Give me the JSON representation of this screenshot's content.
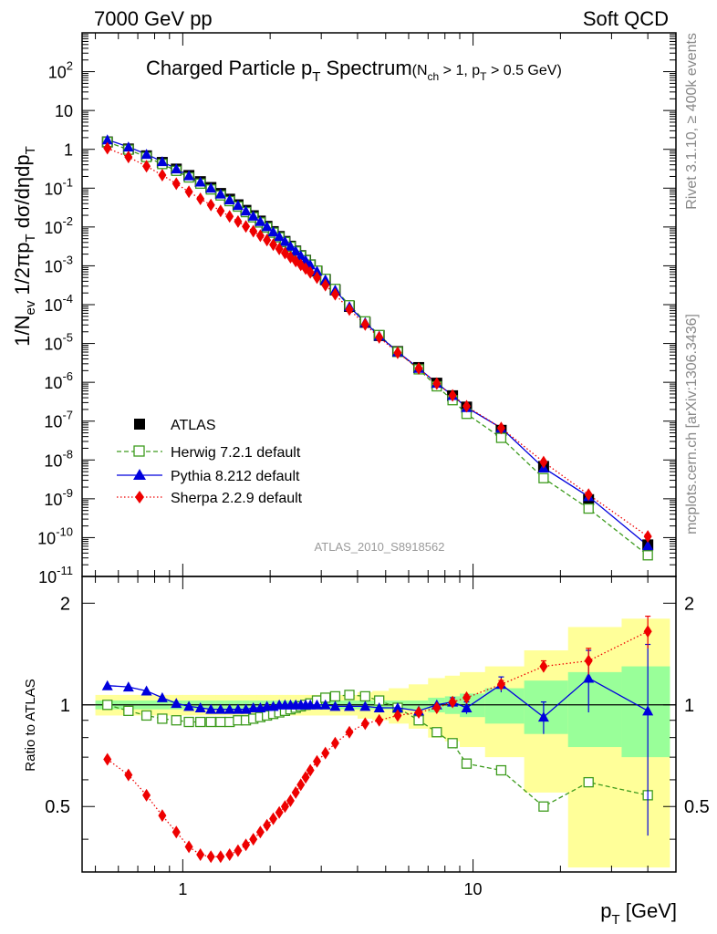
{
  "header": {
    "left": "7000 GeV pp",
    "right": "Soft QCD"
  },
  "title": {
    "main": "Charged Particle p",
    "main_sub": "T",
    "main_tail": " Spectrum",
    "cond_open": "(N",
    "cond_sub1": "ch",
    "cond_mid": " > 1, p",
    "cond_sub2": "T",
    "cond_tail": " > 0.5 GeV)"
  },
  "side_labels": {
    "rivet": "Rivet 3.1.10, ≥ 400k events",
    "mcplots": "mcplots.cern.ch [arXiv:1306.3436]"
  },
  "analysis_id": "ATLAS_2010_S8918562",
  "ylabel_main": {
    "p1": "1/N",
    "s1": "ev",
    "p2": " 1/2πp",
    "s2": "T",
    "p3": " dσ/dηdp",
    "s3": "T"
  },
  "ylabel_ratio": "Ratio to ATLAS",
  "xlabel": {
    "p": "p",
    "s": "T",
    "unit": "  [GeV]"
  },
  "colors": {
    "atlas": "#000000",
    "herwig": "#3d9b1d",
    "pythia": "#0000dd",
    "sherpa": "#ee0000",
    "band_outer": "#ffff99",
    "band_inner": "#99ff99"
  },
  "chart_data": {
    "type": "scatter",
    "x": [
      0.55,
      0.65,
      0.75,
      0.85,
      0.95,
      1.05,
      1.15,
      1.25,
      1.35,
      1.45,
      1.55,
      1.65,
      1.75,
      1.85,
      1.95,
      2.05,
      2.15,
      2.25,
      2.35,
      2.45,
      2.55,
      2.65,
      2.75,
      2.9,
      3.1,
      3.35,
      3.75,
      4.25,
      4.75,
      5.5,
      6.5,
      7.5,
      8.5,
      9.5,
      12.5,
      17.5,
      25,
      40
    ],
    "xscale": "log",
    "xlim": [
      0.45,
      50
    ],
    "ylim_main": [
      1e-11,
      1000
    ],
    "ylim_ratio": [
      0.32,
      2.4
    ],
    "y_ticks_main": [
      "10^{-11}",
      "10^{-10}",
      "10^{-9}",
      "10^{-8}",
      "10^{-7}",
      "10^{-6}",
      "10^{-5}",
      "10^{-4}",
      "10^{-3}",
      "10^{-2}",
      "10^{-1}",
      "1",
      "10",
      "10^{2}"
    ],
    "y_ticks_ratio": [
      "0.5",
      "1",
      "2"
    ],
    "x_ticks": [
      "1",
      "10"
    ],
    "series": [
      {
        "name": "ATLAS",
        "marker": "square-filled",
        "values": [
          1.55,
          1.02,
          0.68,
          0.46,
          0.31,
          0.212,
          0.147,
          0.104,
          0.073,
          0.052,
          0.0373,
          0.0268,
          0.0195,
          0.0142,
          0.0104,
          0.0076,
          0.0057,
          0.00425,
          0.0032,
          0.0024,
          0.00183,
          0.00139,
          0.00106,
          0.00073,
          0.00044,
          0.00024,
          9e-05,
          3.5e-05,
          1.6e-05,
          6.2e-06,
          2.4e-06,
          9.5e-07,
          4.5e-07,
          2.3e-07,
          5.8e-08,
          6.8e-09,
          9.5e-10,
          6.5e-11
        ],
        "ratio_band_inner": [
          0.03,
          0.03,
          0.03,
          0.03,
          0.03,
          0.03,
          0.03,
          0.03,
          0.03,
          0.03,
          0.03,
          0.03,
          0.03,
          0.03,
          0.03,
          0.03,
          0.03,
          0.03,
          0.03,
          0.03,
          0.03,
          0.03,
          0.03,
          0.03,
          0.03,
          0.03,
          0.03,
          0.03,
          0.03,
          0.03,
          0.03,
          0.05,
          0.06,
          0.08,
          0.12,
          0.18,
          0.25,
          0.3
        ],
        "ratio_band_outer": [
          0.07,
          0.07,
          0.07,
          0.07,
          0.07,
          0.07,
          0.07,
          0.07,
          0.07,
          0.07,
          0.07,
          0.07,
          0.07,
          0.07,
          0.07,
          0.07,
          0.07,
          0.07,
          0.07,
          0.07,
          0.07,
          0.07,
          0.07,
          0.07,
          0.07,
          0.07,
          0.07,
          0.09,
          0.1,
          0.12,
          0.15,
          0.2,
          0.22,
          0.25,
          0.3,
          0.45,
          0.7,
          0.8
        ]
      },
      {
        "name": "Herwig 7.2.1 default",
        "marker": "square-open",
        "line": "dashed",
        "ratio": [
          1.0,
          0.96,
          0.93,
          0.91,
          0.9,
          0.89,
          0.89,
          0.89,
          0.89,
          0.89,
          0.9,
          0.9,
          0.91,
          0.92,
          0.93,
          0.94,
          0.95,
          0.96,
          0.97,
          0.98,
          0.99,
          1.0,
          1.01,
          1.03,
          1.05,
          1.06,
          1.07,
          1.06,
          1.03,
          0.98,
          0.9,
          0.83,
          0.77,
          0.67,
          0.64,
          0.5,
          0.59,
          0.54
        ]
      },
      {
        "name": "Pythia 8.212 default",
        "marker": "triangle-filled",
        "line": "solid",
        "ratio": [
          1.14,
          1.13,
          1.1,
          1.05,
          1.01,
          0.99,
          0.98,
          0.97,
          0.97,
          0.97,
          0.97,
          0.97,
          0.98,
          0.98,
          0.99,
          0.99,
          1.0,
          1.0,
          1.0,
          1.0,
          1.0,
          1.0,
          1.0,
          1.0,
          1.0,
          0.99,
          0.99,
          0.99,
          0.98,
          0.98,
          0.96,
          1.0,
          1.02,
          0.98,
          1.15,
          0.92,
          1.2,
          0.96
        ],
        "ratio_err": [
          0,
          0,
          0,
          0,
          0,
          0,
          0,
          0,
          0,
          0,
          0,
          0,
          0,
          0,
          0,
          0,
          0,
          0,
          0,
          0,
          0,
          0,
          0,
          0,
          0,
          0,
          0,
          0,
          0,
          0,
          0,
          0,
          0.03,
          0.04,
          0.06,
          0.1,
          0.25,
          0.55
        ]
      },
      {
        "name": "Sherpa 2.2.9 default",
        "marker": "diamond-filled",
        "line": "dotted",
        "ratio": [
          0.69,
          0.62,
          0.54,
          0.47,
          0.42,
          0.38,
          0.36,
          0.355,
          0.355,
          0.36,
          0.37,
          0.385,
          0.4,
          0.42,
          0.44,
          0.46,
          0.48,
          0.5,
          0.52,
          0.55,
          0.58,
          0.61,
          0.64,
          0.68,
          0.72,
          0.77,
          0.83,
          0.88,
          0.9,
          0.93,
          0.95,
          0.98,
          1.02,
          1.05,
          1.15,
          1.3,
          1.35,
          1.65
        ],
        "ratio_err": [
          0,
          0,
          0,
          0,
          0,
          0,
          0,
          0,
          0,
          0,
          0,
          0,
          0,
          0,
          0,
          0,
          0,
          0,
          0,
          0,
          0,
          0,
          0,
          0,
          0,
          0,
          0,
          0,
          0,
          0,
          0,
          0,
          0,
          0.02,
          0.03,
          0.05,
          0.12,
          0.18
        ]
      }
    ]
  }
}
